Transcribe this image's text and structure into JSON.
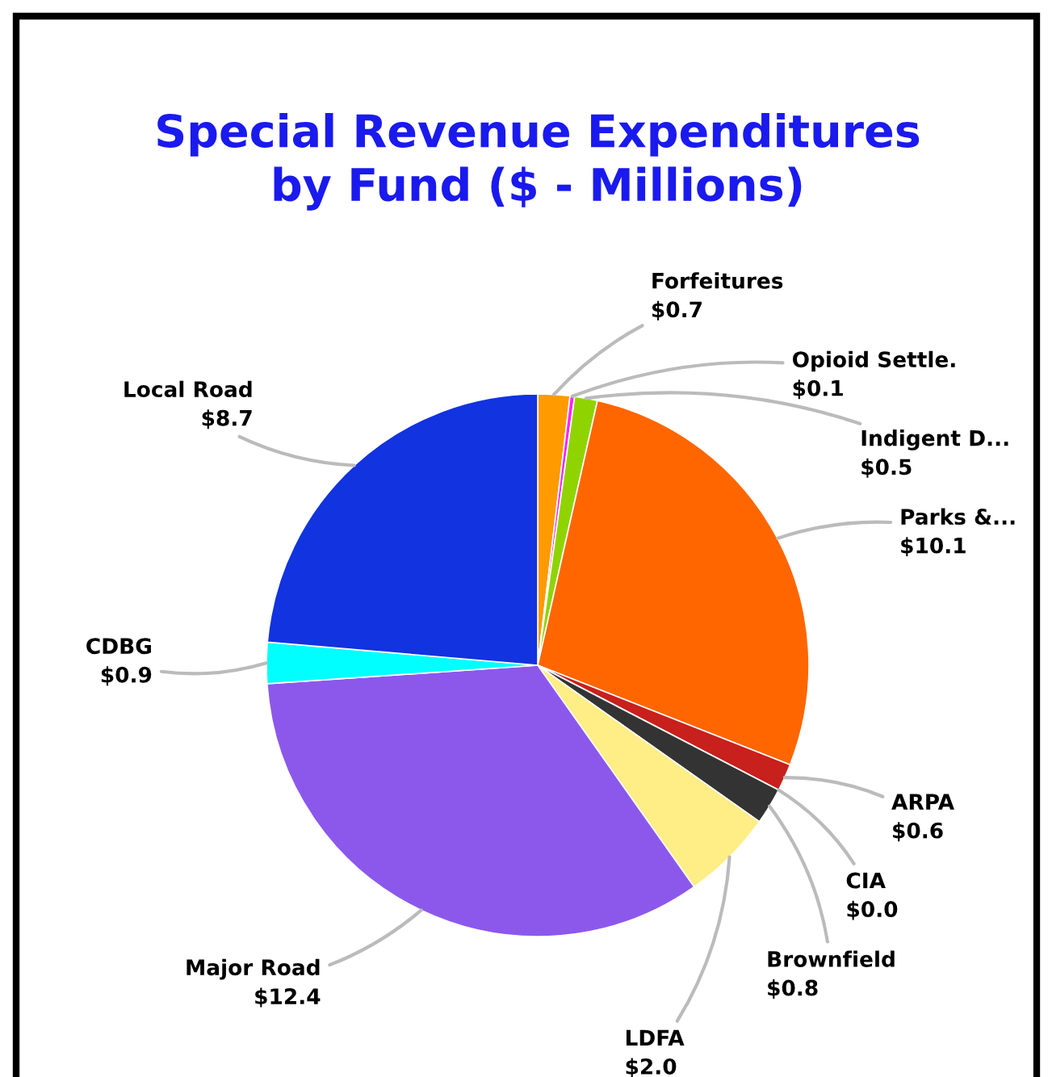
{
  "chart_data": {
    "type": "pie",
    "title": "Special Revenue Expenditures\nby Fund ($ - Millions)",
    "categories": [
      "Forfeitures",
      "Opioid Settle.",
      "Indigent D...",
      "Parks &...",
      "ARPA",
      "CIA",
      "Brownfield",
      "LDFA",
      "Major Road",
      "CDBG",
      "Local Road"
    ],
    "values": [
      0.7,
      0.1,
      0.5,
      10.1,
      0.6,
      0.0,
      0.8,
      2.0,
      12.4,
      0.9,
      8.7
    ],
    "value_labels": [
      "$0.7",
      "$0.1",
      "$0.5",
      "$10.1",
      "$0.6",
      "$0.0",
      "$0.8",
      "$2.0",
      "$12.4",
      "$0.9",
      "$8.7"
    ],
    "colors": [
      "#ff9a00",
      "#ff22ff",
      "#8fd400",
      "#ff6600",
      "#c8201c",
      "#66bbbb",
      "#333333",
      "#ffed85",
      "#8c58ec",
      "#00ffff",
      "#1133e0"
    ],
    "legend": false
  }
}
